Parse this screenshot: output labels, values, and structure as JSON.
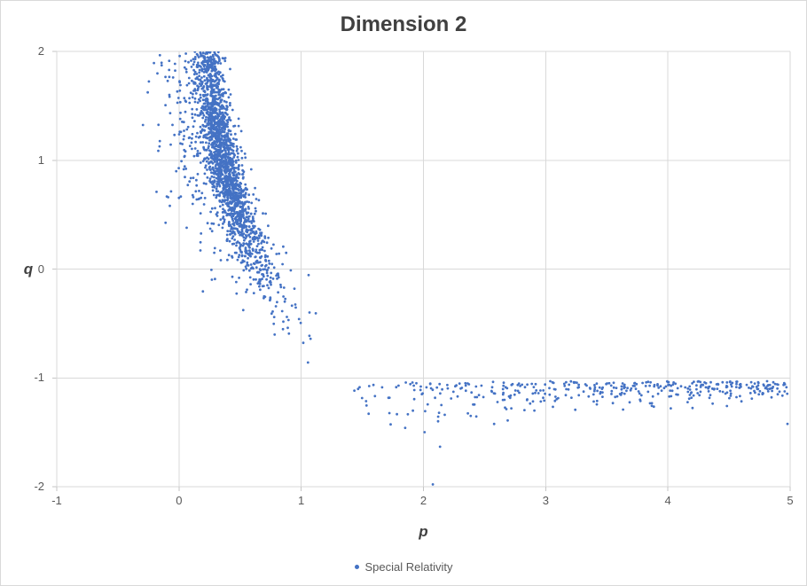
{
  "chart_data": {
    "type": "scatter",
    "title": "Dimension 2",
    "xlabel": "p",
    "ylabel": "q",
    "xlim": [
      -1,
      5
    ],
    "ylim": [
      -2,
      2
    ],
    "x_ticks": [
      -1,
      0,
      1,
      2,
      3,
      4,
      5
    ],
    "y_ticks": [
      2,
      1,
      0,
      -1,
      -2
    ],
    "grid": true,
    "legend_position": "bottom-center",
    "legend": {
      "entries": [
        {
          "label": "Special Relativity",
          "color": "#4472C4"
        }
      ]
    },
    "series": [
      {
        "name": "Special Relativity",
        "marker_color": "#4472C4",
        "marker_radius": 1.4,
        "generator": {
          "seed": 1337,
          "note": "procedural approximation of ~2500 plotted points in two clusters",
          "clusters": [
            {
              "type": "hyperbola",
              "shape": "q ~= 0.5/p - p + noise, dense branch upper-left, clipped at q=2, sparse left outliers to p=-0.45, tail to (0.9,-0.6)",
              "count": 2100,
              "log_mu": -1.11,
              "log_sigma": 0.42,
              "q_coef": 0.5,
              "q_noise": 0.17,
              "p_noise": 0.055,
              "tail_prob": 0.14,
              "tail_sigma": 0.23
            },
            {
              "type": "band",
              "shape": "flat band just below q=-1: q ~= -1.03 - |noise|*0.27/p^0.8, from p=1.32 to p=4.98, tightens toward -1.05 at right, deep outliers to -1.7",
              "count": 400,
              "x_min": 1.32,
              "x_max": 4.98,
              "x_pow": 0.72,
              "q_base": -1.03,
              "spread": 0.27,
              "decay": 0.8,
              "deep_prob": 0.05,
              "deep_mult": 2.3
            }
          ]
        }
      }
    ]
  },
  "colors": {
    "marker": "#4472C4",
    "gridline": "#D9D9D9",
    "axis_tick": "#C6C6C6",
    "title_text": "#404040",
    "axis_title_text": "#404040",
    "tick_text": "#595959",
    "legend_text": "#595959",
    "background": "#FFFFFF",
    "border": "#D9D9D9"
  }
}
